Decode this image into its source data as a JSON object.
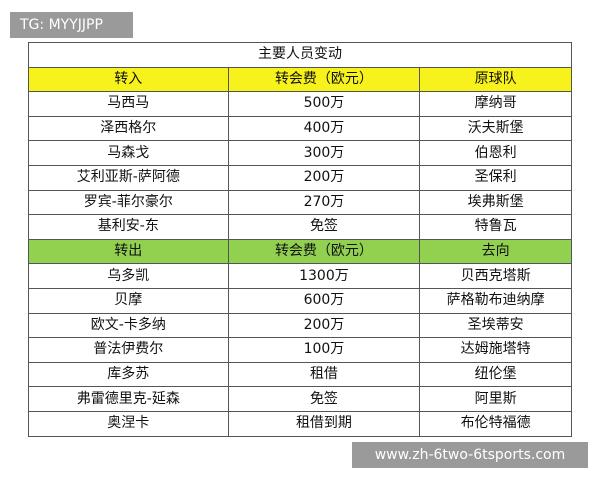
{
  "label": "TG: MYYJJPP",
  "table": {
    "title": "主要人员变动",
    "sections": [
      {
        "header": [
          "转入",
          "转会费（欧元）",
          "原球队"
        ],
        "rows": [
          [
            "马西马",
            "500万",
            "摩纳哥"
          ],
          [
            "泽西格尔",
            "400万",
            "沃夫斯堡"
          ],
          [
            "马森戈",
            "300万",
            "伯恩利"
          ],
          [
            "艾利亚斯-萨阿德",
            "200万",
            "圣保利"
          ],
          [
            "罗宾-菲尔豪尔",
            "270万",
            "埃弗斯堡"
          ],
          [
            "基利安-东",
            "免签",
            "特鲁瓦"
          ]
        ]
      },
      {
        "header": [
          "转出",
          "转会费（欧元）",
          "去向"
        ],
        "rows": [
          [
            "乌多凯",
            "1300万",
            "贝西克塔斯"
          ],
          [
            "贝摩",
            "600万",
            "萨格勒布迪纳摩"
          ],
          [
            "欧文-卡多纳",
            "200万",
            "圣埃蒂安"
          ],
          [
            "普法伊费尔",
            "100万",
            "达姆施塔特"
          ],
          [
            "库多苏",
            "租借",
            "纽伦堡"
          ],
          [
            "弗雷德里克-延森",
            "免签",
            "阿里斯"
          ],
          [
            "奥涅卡",
            "租借到期",
            "布伦特福德"
          ]
        ]
      }
    ]
  },
  "footer_url": "www.zh-6two-6tsports.com"
}
